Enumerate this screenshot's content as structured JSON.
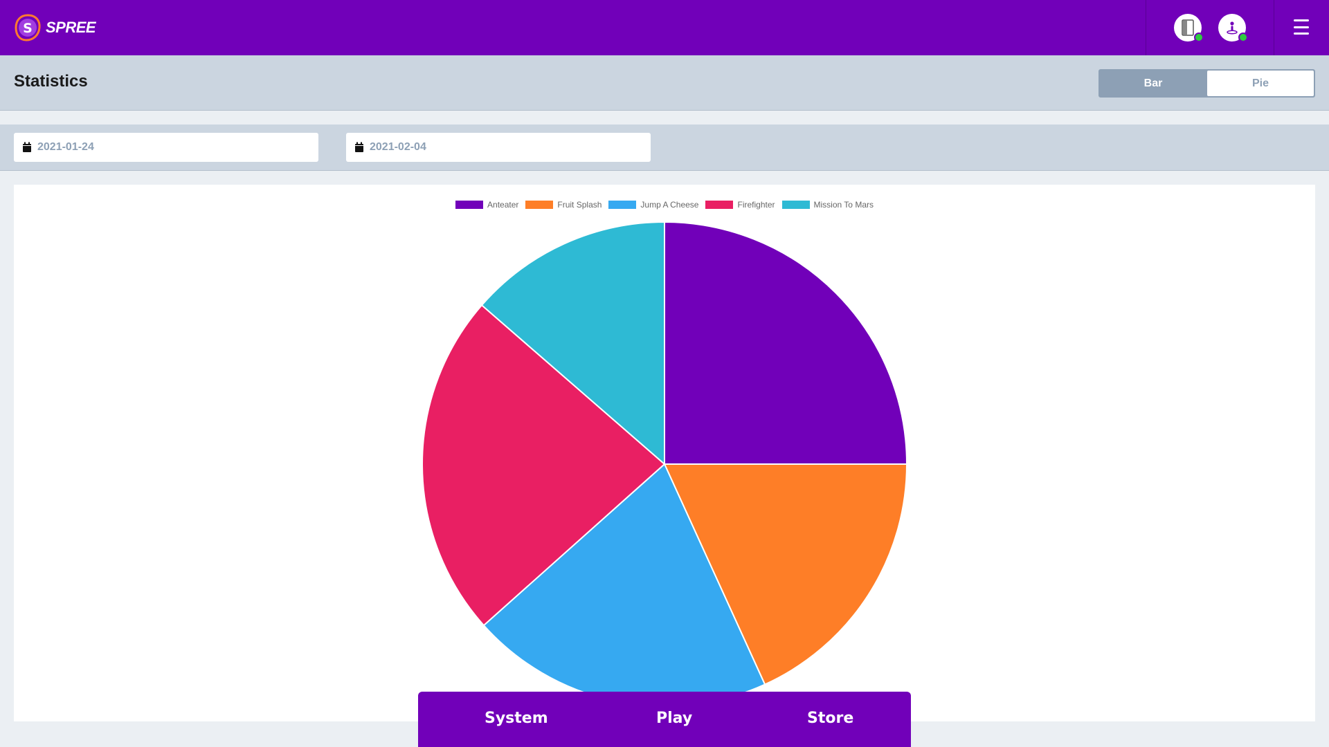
{
  "app": {
    "logo_letter": "S",
    "logo_text": "SPREE",
    "brand_color": "#7100b9",
    "status_icons": [
      "device-status-icon",
      "user-status-icon"
    ],
    "status_color": "#2ecc40"
  },
  "header": {
    "title": "Statistics",
    "view_toggle": {
      "options": [
        "Bar",
        "Pie"
      ],
      "selected": "Pie"
    }
  },
  "filters": {
    "start_date": "2021-01-24",
    "end_date": "2021-02-04"
  },
  "chart_data": {
    "type": "pie",
    "legend_position": "top",
    "series": [
      {
        "name": "Anteater",
        "value": 25.0,
        "color": "#7100b9"
      },
      {
        "name": "Fruit Splash",
        "value": 18.2,
        "color": "#fe7e27"
      },
      {
        "name": "Jump A Cheese",
        "value": 20.2,
        "color": "#36a9f1"
      },
      {
        "name": "Firefighter",
        "value": 23.0,
        "color": "#e91f63"
      },
      {
        "name": "Mission To Mars",
        "value": 13.6,
        "color": "#2ebad4"
      }
    ]
  },
  "bottom_nav": {
    "items": [
      "System",
      "Play",
      "Store"
    ]
  }
}
